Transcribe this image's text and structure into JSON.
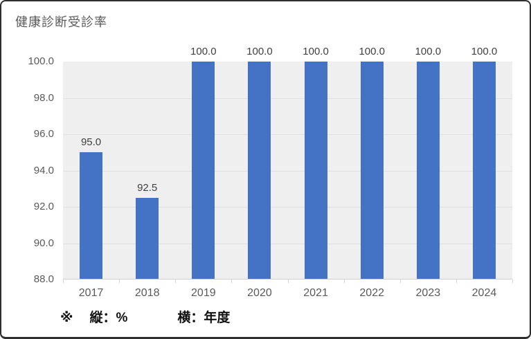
{
  "chart_data": {
    "type": "bar",
    "title": "健康診断受診率",
    "categories": [
      "2017",
      "2018",
      "2019",
      "2020",
      "2021",
      "2022",
      "2023",
      "2024"
    ],
    "values": [
      95.0,
      92.5,
      100.0,
      100.0,
      100.0,
      100.0,
      100.0,
      100.0
    ],
    "data_labels": [
      "95.0",
      "92.5",
      "100.0",
      "100.0",
      "100.0",
      "100.0",
      "100.0",
      "100.0"
    ],
    "ylim": [
      88.0,
      100.0
    ],
    "y_tick_step": 2.0,
    "y_tick_labels": [
      "100.0",
      "98.0",
      "96.0",
      "94.0",
      "92.0",
      "90.0",
      "88.0"
    ],
    "xlabel": "年度",
    "ylabel": "%",
    "grid": true,
    "legend": "none",
    "colors": {
      "bar": "#4472C4",
      "plot_background": "#efefef",
      "gridline": "#e0e0e0",
      "data_label": "#404040",
      "axis_text": "#595959",
      "title_text": "#595959"
    }
  },
  "note": {
    "marker": "※",
    "vertical": "縦：%",
    "horizontal": "横：年度"
  }
}
